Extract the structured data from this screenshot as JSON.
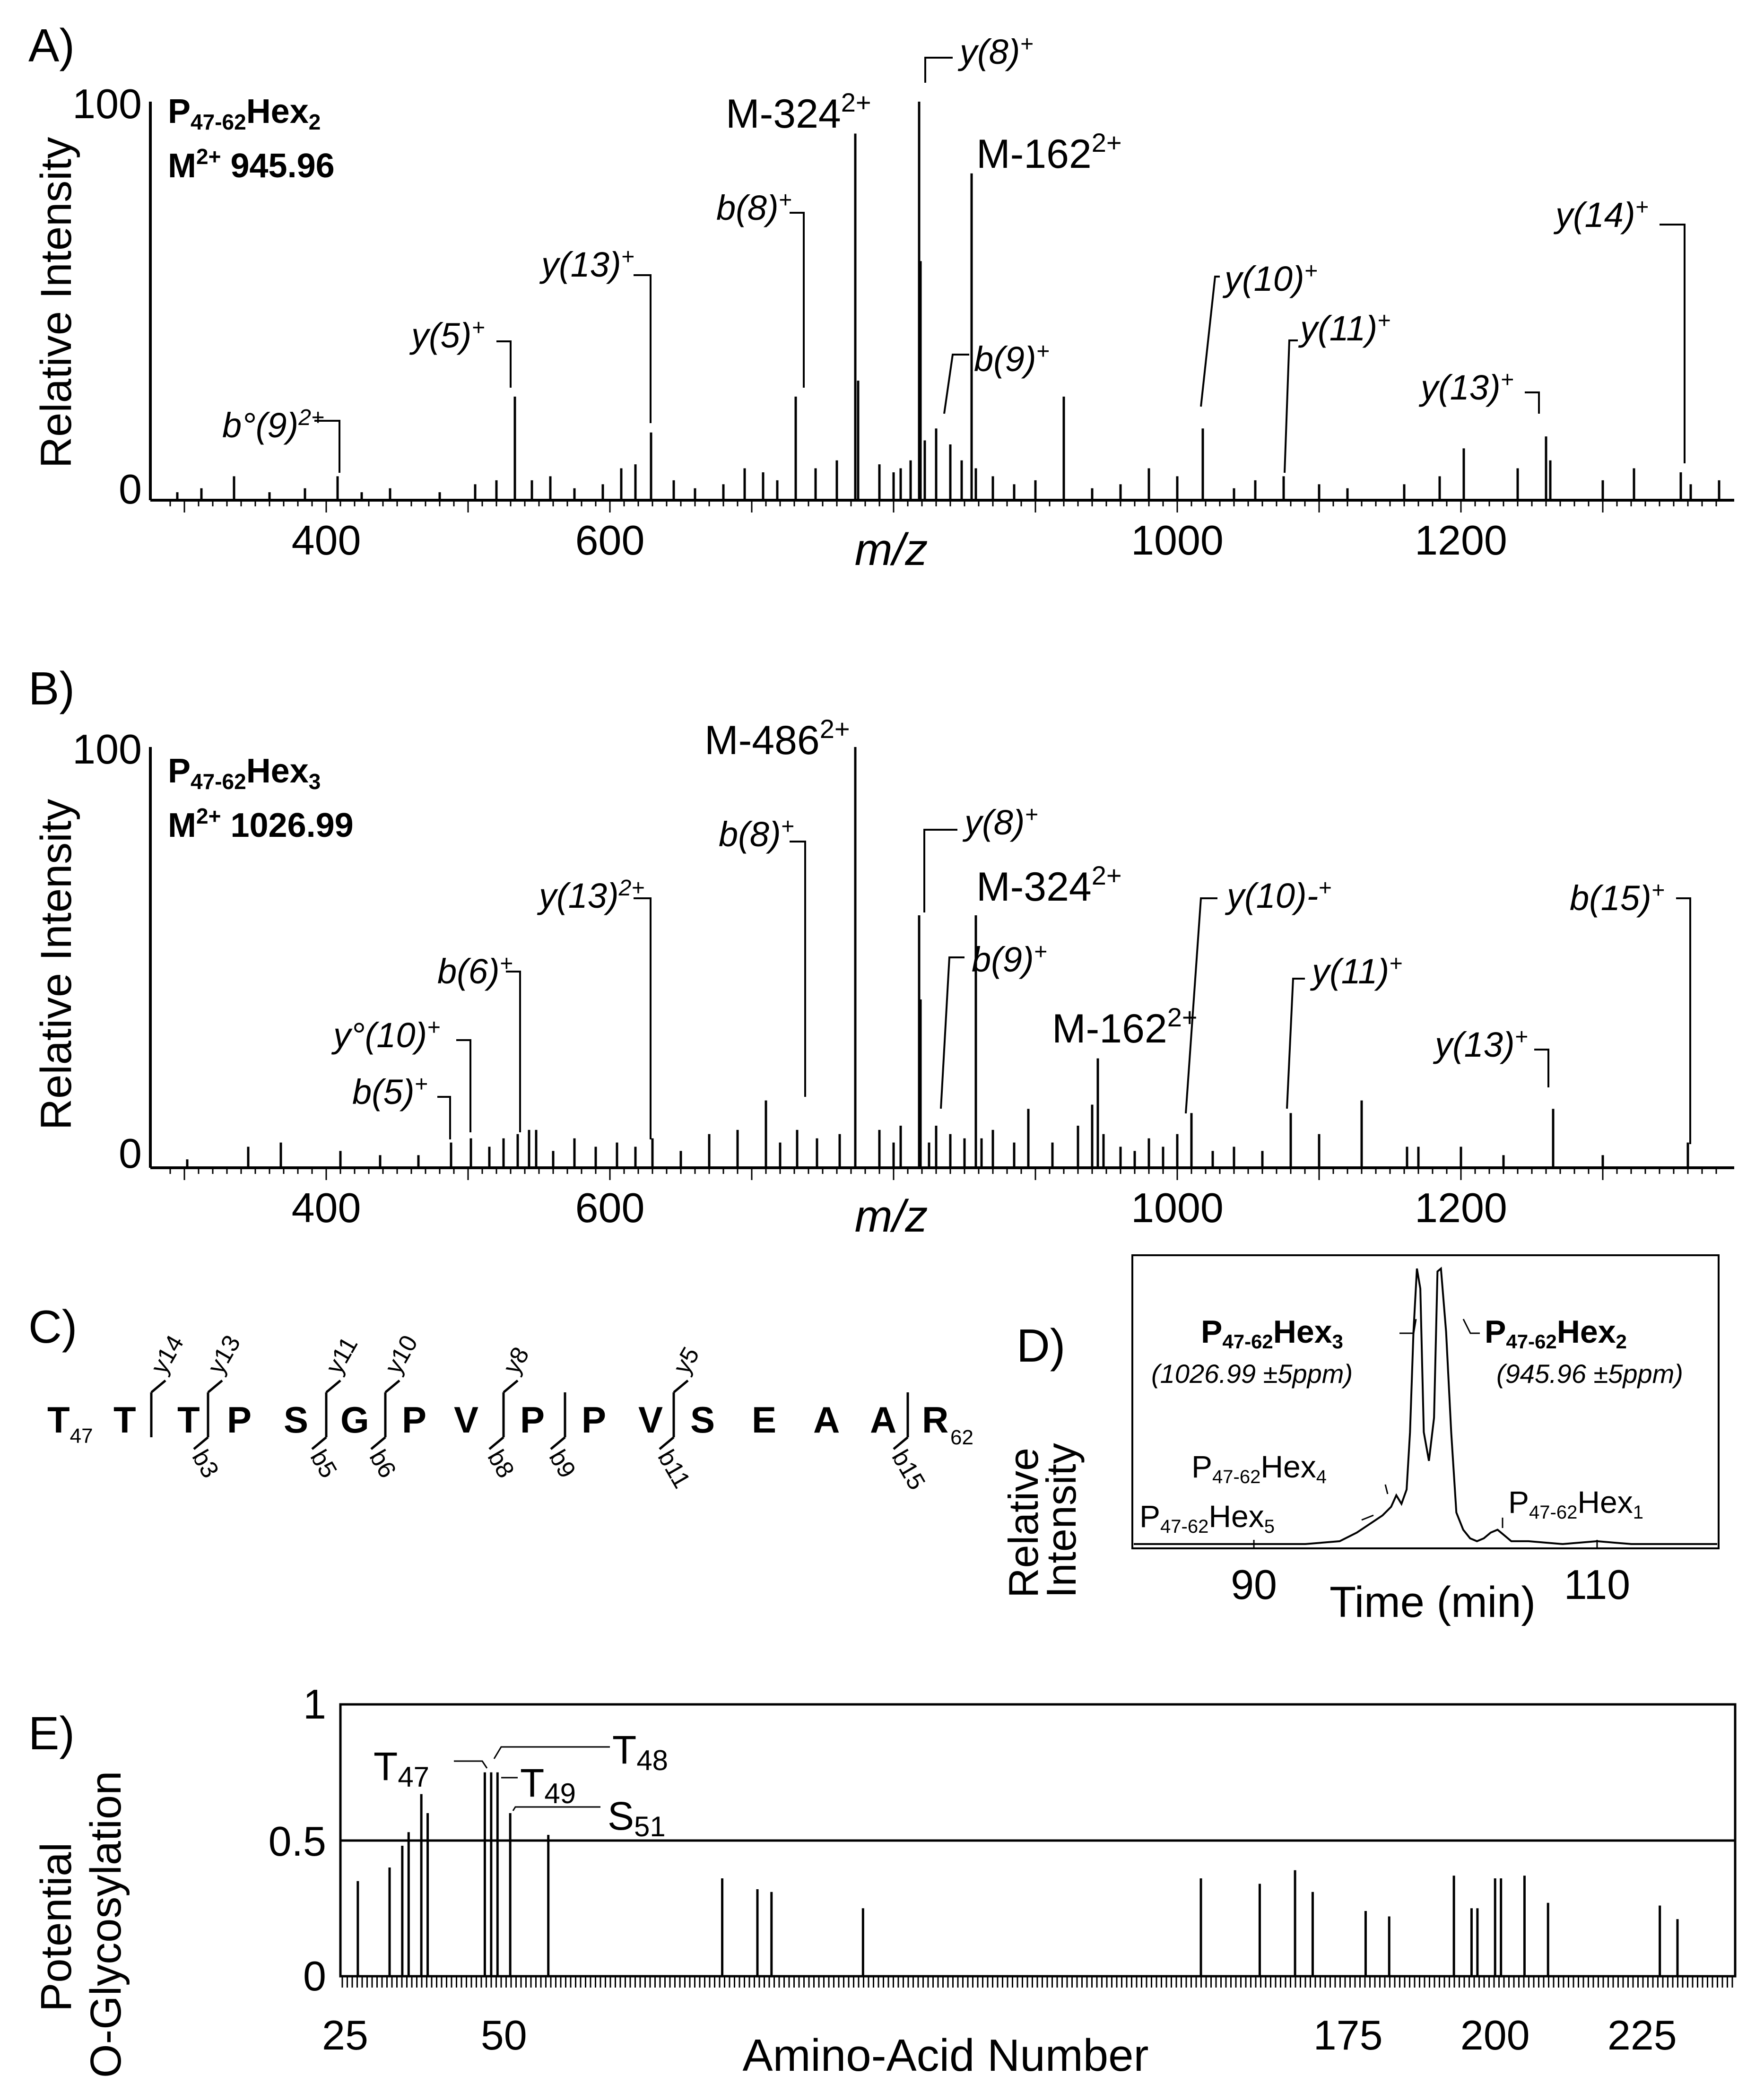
{
  "panels": {
    "A": {
      "label": "A)",
      "peptide": "P",
      "peptide_range": "47-62",
      "peptide_glycan": "Hex",
      "peptide_hex_count": "2",
      "precursor_ion": "M",
      "precursor_charge": "2+",
      "precursor_mz": "945.96",
      "ylabel": "Relative Intensity",
      "xlabel": "m/z",
      "ytick_top": "100",
      "ytick_bottom": "0",
      "xticks": [
        "400",
        "600",
        "1000",
        "1200"
      ]
    },
    "B": {
      "label": "B)",
      "peptide": "P",
      "peptide_range": "47-62",
      "peptide_glycan": "Hex",
      "peptide_hex_count": "3",
      "precursor_ion": "M",
      "precursor_charge": "2+",
      "precursor_mz": "1026.99",
      "ylabel": "Relative Intensity",
      "xlabel": "m/z",
      "ytick_top": "100",
      "ytick_bottom": "0",
      "xticks": [
        "400",
        "600",
        "1000",
        "1200"
      ]
    },
    "C": {
      "label": "C)",
      "start_residue": "T",
      "start_number": "47",
      "end_number": "62",
      "residues": [
        "T",
        "T",
        "T",
        "P",
        "S",
        "G",
        "P",
        "V",
        "P",
        "P",
        "V",
        "S",
        "E",
        "A",
        "A",
        "R"
      ],
      "y_ions": [
        "y14",
        "y13",
        "y11",
        "y10",
        "y8",
        "y5"
      ],
      "b_ions": [
        "b3",
        "b5",
        "b6",
        "b8",
        "b9",
        "b11",
        "b15"
      ]
    },
    "D": {
      "label": "D)",
      "ylabel_line1": "Relative",
      "ylabel_line2": "Intensity",
      "xlabel": "Time (min)",
      "xticks": [
        "90",
        "110"
      ],
      "hex3_tol": "(1026.99 ±5ppm)",
      "hex2_tol": "(945.96 ±5ppm)",
      "glyco_prefix": "P",
      "glyco_range": "47-62",
      "glyco_name": "Hex",
      "n3": "3",
      "n2": "2",
      "n4": "4",
      "n5": "5",
      "n1": "1"
    },
    "E": {
      "label": "E)",
      "ylabel_line1": "Potential",
      "ylabel_line2": "O-Glycosylation",
      "xlabel": "Amino-Acid Number",
      "yticks": [
        "1",
        "0.5",
        "0"
      ],
      "xticks": [
        "25",
        "50",
        "175",
        "200",
        "225"
      ],
      "site_T": "T",
      "site_S": "S",
      "site_47": "47",
      "site_48": "48",
      "site_49": "49",
      "site_51": "51"
    }
  },
  "chart_data": [
    {
      "type": "bar",
      "panel": "A",
      "title": "P47-62Hex2, M2+ 945.96",
      "xlabel": "m/z",
      "ylabel": "Relative Intensity",
      "xlim": [
        280,
        1390
      ],
      "ylim": [
        0,
        100
      ],
      "peaks": [
        {
          "mz": 295,
          "i": 2
        },
        {
          "mz": 312,
          "i": 3
        },
        {
          "mz": 335,
          "i": 6
        },
        {
          "mz": 360,
          "i": 2
        },
        {
          "mz": 385,
          "i": 3
        },
        {
          "mz": 408,
          "i": 6
        },
        {
          "mz": 425,
          "i": 2
        },
        {
          "mz": 445,
          "i": 3
        },
        {
          "mz": 480,
          "i": 2
        },
        {
          "mz": 505,
          "i": 4
        },
        {
          "mz": 520,
          "i": 5
        },
        {
          "mz": 533,
          "i": 26
        },
        {
          "mz": 545,
          "i": 5
        },
        {
          "mz": 558,
          "i": 6
        },
        {
          "mz": 575,
          "i": 3
        },
        {
          "mz": 595,
          "i": 4
        },
        {
          "mz": 608,
          "i": 8
        },
        {
          "mz": 618,
          "i": 9
        },
        {
          "mz": 629,
          "i": 17
        },
        {
          "mz": 645,
          "i": 5
        },
        {
          "mz": 660,
          "i": 3
        },
        {
          "mz": 680,
          "i": 4
        },
        {
          "mz": 695,
          "i": 8
        },
        {
          "mz": 708,
          "i": 7
        },
        {
          "mz": 718,
          "i": 5
        },
        {
          "mz": 731,
          "i": 26
        },
        {
          "mz": 745,
          "i": 8
        },
        {
          "mz": 760,
          "i": 10
        },
        {
          "mz": 773,
          "i": 92
        },
        {
          "mz": 775,
          "i": 30
        },
        {
          "mz": 790,
          "i": 9
        },
        {
          "mz": 800,
          "i": 7
        },
        {
          "mz": 805,
          "i": 8
        },
        {
          "mz": 812,
          "i": 10
        },
        {
          "mz": 818,
          "i": 100
        },
        {
          "mz": 819,
          "i": 60
        },
        {
          "mz": 822,
          "i": 15
        },
        {
          "mz": 830,
          "i": 18
        },
        {
          "mz": 840,
          "i": 14
        },
        {
          "mz": 848,
          "i": 10
        },
        {
          "mz": 855,
          "i": 82
        },
        {
          "mz": 858,
          "i": 8
        },
        {
          "mz": 870,
          "i": 6
        },
        {
          "mz": 885,
          "i": 4
        },
        {
          "mz": 900,
          "i": 5
        },
        {
          "mz": 920,
          "i": 26
        },
        {
          "mz": 940,
          "i": 3
        },
        {
          "mz": 960,
          "i": 4
        },
        {
          "mz": 980,
          "i": 8
        },
        {
          "mz": 1000,
          "i": 6
        },
        {
          "mz": 1018,
          "i": 18
        },
        {
          "mz": 1040,
          "i": 3
        },
        {
          "mz": 1055,
          "i": 5
        },
        {
          "mz": 1075,
          "i": 6
        },
        {
          "mz": 1100,
          "i": 4
        },
        {
          "mz": 1120,
          "i": 3
        },
        {
          "mz": 1160,
          "i": 4
        },
        {
          "mz": 1185,
          "i": 6
        },
        {
          "mz": 1202,
          "i": 13
        },
        {
          "mz": 1240,
          "i": 8
        },
        {
          "mz": 1260,
          "i": 16
        },
        {
          "mz": 1263,
          "i": 10
        },
        {
          "mz": 1300,
          "i": 5
        },
        {
          "mz": 1322,
          "i": 8
        },
        {
          "mz": 1355,
          "i": 7
        },
        {
          "mz": 1362,
          "i": 4
        },
        {
          "mz": 1382,
          "i": 5
        }
      ],
      "annotations": [
        {
          "label": "b°(9)2+",
          "mz": 408,
          "i": 6
        },
        {
          "label": "y(5)+",
          "mz": 533,
          "i": 26
        },
        {
          "label": "y(13)+",
          "mz": 629,
          "i": 17
        },
        {
          "label": "b(8)+",
          "mz": 731,
          "i": 26
        },
        {
          "label": "M-3242+",
          "mz": 773,
          "i": 92
        },
        {
          "label": "y(8)+",
          "mz": 818,
          "i": 100
        },
        {
          "label": "b(9)+",
          "mz": 830,
          "i": 18
        },
        {
          "label": "M-1622+",
          "mz": 855,
          "i": 82
        },
        {
          "label": "y(10)+",
          "mz": 1018,
          "i": 18
        },
        {
          "label": "y(11)+",
          "mz": 1075,
          "i": 6
        },
        {
          "label": "y(13)+",
          "mz": 1260,
          "i": 16
        },
        {
          "label": "y(14)+",
          "mz": 1355,
          "i": 7
        }
      ]
    },
    {
      "type": "bar",
      "panel": "B",
      "title": "P47-62Hex3, M2+ 1026.99",
      "xlabel": "m/z",
      "ylabel": "Relative Intensity",
      "xlim": [
        280,
        1390
      ],
      "ylim": [
        0,
        100
      ],
      "peaks": [
        {
          "mz": 302,
          "i": 2
        },
        {
          "mz": 345,
          "i": 5
        },
        {
          "mz": 368,
          "i": 6
        },
        {
          "mz": 410,
          "i": 4
        },
        {
          "mz": 438,
          "i": 3
        },
        {
          "mz": 465,
          "i": 3
        },
        {
          "mz": 488,
          "i": 6
        },
        {
          "mz": 502,
          "i": 7
        },
        {
          "mz": 515,
          "i": 5
        },
        {
          "mz": 525,
          "i": 7
        },
        {
          "mz": 535,
          "i": 8
        },
        {
          "mz": 543,
          "i": 9
        },
        {
          "mz": 548,
          "i": 9
        },
        {
          "mz": 560,
          "i": 4
        },
        {
          "mz": 575,
          "i": 7
        },
        {
          "mz": 590,
          "i": 5
        },
        {
          "mz": 605,
          "i": 6
        },
        {
          "mz": 618,
          "i": 5
        },
        {
          "mz": 630,
          "i": 7
        },
        {
          "mz": 650,
          "i": 4
        },
        {
          "mz": 670,
          "i": 8
        },
        {
          "mz": 690,
          "i": 9
        },
        {
          "mz": 710,
          "i": 16
        },
        {
          "mz": 720,
          "i": 6
        },
        {
          "mz": 732,
          "i": 9
        },
        {
          "mz": 746,
          "i": 7
        },
        {
          "mz": 762,
          "i": 8
        },
        {
          "mz": 773,
          "i": 100
        },
        {
          "mz": 790,
          "i": 9
        },
        {
          "mz": 800,
          "i": 6
        },
        {
          "mz": 805,
          "i": 10
        },
        {
          "mz": 818,
          "i": 60
        },
        {
          "mz": 819,
          "i": 40
        },
        {
          "mz": 825,
          "i": 6
        },
        {
          "mz": 830,
          "i": 10
        },
        {
          "mz": 840,
          "i": 8
        },
        {
          "mz": 850,
          "i": 7
        },
        {
          "mz": 858,
          "i": 60
        },
        {
          "mz": 862,
          "i": 7
        },
        {
          "mz": 870,
          "i": 9
        },
        {
          "mz": 885,
          "i": 6
        },
        {
          "mz": 895,
          "i": 14
        },
        {
          "mz": 912,
          "i": 6
        },
        {
          "mz": 930,
          "i": 10
        },
        {
          "mz": 940,
          "i": 15
        },
        {
          "mz": 944,
          "i": 26
        },
        {
          "mz": 948,
          "i": 8
        },
        {
          "mz": 960,
          "i": 5
        },
        {
          "mz": 970,
          "i": 4
        },
        {
          "mz": 980,
          "i": 7
        },
        {
          "mz": 990,
          "i": 5
        },
        {
          "mz": 1000,
          "i": 8
        },
        {
          "mz": 1010,
          "i": 13
        },
        {
          "mz": 1025,
          "i": 4
        },
        {
          "mz": 1040,
          "i": 5
        },
        {
          "mz": 1060,
          "i": 4
        },
        {
          "mz": 1080,
          "i": 13
        },
        {
          "mz": 1100,
          "i": 8
        },
        {
          "mz": 1130,
          "i": 16
        },
        {
          "mz": 1162,
          "i": 5
        },
        {
          "mz": 1170,
          "i": 5
        },
        {
          "mz": 1200,
          "i": 5
        },
        {
          "mz": 1230,
          "i": 3
        },
        {
          "mz": 1265,
          "i": 14
        },
        {
          "mz": 1300,
          "i": 3
        },
        {
          "mz": 1360,
          "i": 6
        }
      ],
      "annotations": [
        {
          "label": "b(5)+",
          "mz": 488,
          "i": 6
        },
        {
          "label": "y°(10)+",
          "mz": 502,
          "i": 7
        },
        {
          "label": "b(6)+",
          "mz": 548,
          "i": 9
        },
        {
          "label": "y(13)2+",
          "mz": 630,
          "i": 7
        },
        {
          "label": "b(8)+",
          "mz": 732,
          "i": 9
        },
        {
          "label": "M-4862+",
          "mz": 773,
          "i": 100
        },
        {
          "label": "y(8)+",
          "mz": 818,
          "i": 60
        },
        {
          "label": "b(9)+",
          "mz": 830,
          "i": 10
        },
        {
          "label": "M-3242+",
          "mz": 858,
          "i": 60
        },
        {
          "label": "M-1622+",
          "mz": 944,
          "i": 26
        },
        {
          "label": "y(10)-+",
          "mz": 1010,
          "i": 13
        },
        {
          "label": "y(11)+",
          "mz": 1080,
          "i": 13
        },
        {
          "label": "y(13)+",
          "mz": 1265,
          "i": 14
        },
        {
          "label": "b(15)+",
          "mz": 1360,
          "i": 6
        }
      ]
    },
    {
      "type": "line",
      "panel": "D",
      "xlabel": "Time (min)",
      "ylabel": "Relative Intensity",
      "xlim": [
        83,
        117
      ],
      "ylim": [
        0,
        100
      ],
      "x": [
        83,
        88,
        90,
        93,
        95,
        96,
        96.5,
        97,
        97.5,
        98,
        98.3,
        98.6,
        98.9,
        99.1,
        99.3,
        99.5,
        99.7,
        99.9,
        100.2,
        100.5,
        100.7,
        100.9,
        101.2,
        101.5,
        101.8,
        102.2,
        102.6,
        103,
        103.4,
        103.8,
        104.2,
        104.6,
        105,
        106,
        108,
        110,
        112,
        114,
        117
      ],
      "y": [
        1,
        1,
        1,
        1,
        2,
        5,
        7,
        9,
        11,
        14,
        18,
        15,
        20,
        40,
        75,
        97,
        90,
        40,
        30,
        45,
        96,
        97,
        75,
        40,
        12,
        6,
        3,
        2,
        3,
        5,
        6,
        4,
        2,
        2,
        1,
        2,
        1,
        1,
        1
      ],
      "peak_labels": [
        {
          "label": "P47-62Hex3 (1026.99 ±5ppm)",
          "x": 99.5,
          "y": 97
        },
        {
          "label": "P47-62Hex2 (945.96 ±5ppm)",
          "x": 100.9,
          "y": 97
        },
        {
          "label": "P47-62Hex4",
          "x": 98.3,
          "y": 18
        },
        {
          "label": "P47-62Hex5",
          "x": 97.5,
          "y": 11
        },
        {
          "label": "P47-62Hex1",
          "x": 104.2,
          "y": 6
        }
      ]
    },
    {
      "type": "bar",
      "panel": "E",
      "xlabel": "Amino-Acid Number",
      "ylabel": "Potential O-Glycosylation",
      "ylim": [
        0,
        1
      ],
      "threshold": 0.5,
      "ticks": [
        25,
        50,
        175,
        200,
        225
      ],
      "bars": [
        {
          "aa": 27,
          "v": 0.35
        },
        {
          "aa": 32,
          "v": 0.4
        },
        {
          "aa": 34,
          "v": 0.48
        },
        {
          "aa": 35,
          "v": 0.53
        },
        {
          "aa": 37,
          "v": 0.67
        },
        {
          "aa": 38,
          "v": 0.6
        },
        {
          "aa": 47,
          "v": 0.75
        },
        {
          "aa": 48,
          "v": 0.75
        },
        {
          "aa": 49,
          "v": 0.75
        },
        {
          "aa": 51,
          "v": 0.6
        },
        {
          "aa": 57,
          "v": 0.52
        },
        {
          "aa": 82,
          "v": 0.36
        },
        {
          "aa": 87,
          "v": 0.32
        },
        {
          "aa": 89,
          "v": 0.31
        },
        {
          "aa": 102,
          "v": 0.25
        },
        {
          "aa": 150,
          "v": 0.36
        },
        {
          "aa": 160,
          "v": 0.34
        },
        {
          "aa": 166,
          "v": 0.39
        },
        {
          "aa": 169,
          "v": 0.31
        },
        {
          "aa": 178,
          "v": 0.24
        },
        {
          "aa": 182,
          "v": 0.22
        },
        {
          "aa": 193,
          "v": 0.37
        },
        {
          "aa": 196,
          "v": 0.25
        },
        {
          "aa": 197,
          "v": 0.25
        },
        {
          "aa": 200,
          "v": 0.36
        },
        {
          "aa": 201,
          "v": 0.36
        },
        {
          "aa": 205,
          "v": 0.37
        },
        {
          "aa": 209,
          "v": 0.27
        },
        {
          "aa": 228,
          "v": 0.26
        },
        {
          "aa": 231,
          "v": 0.21
        }
      ],
      "labeled_sites": [
        "T47",
        "T48",
        "T49",
        "S51"
      ]
    }
  ]
}
